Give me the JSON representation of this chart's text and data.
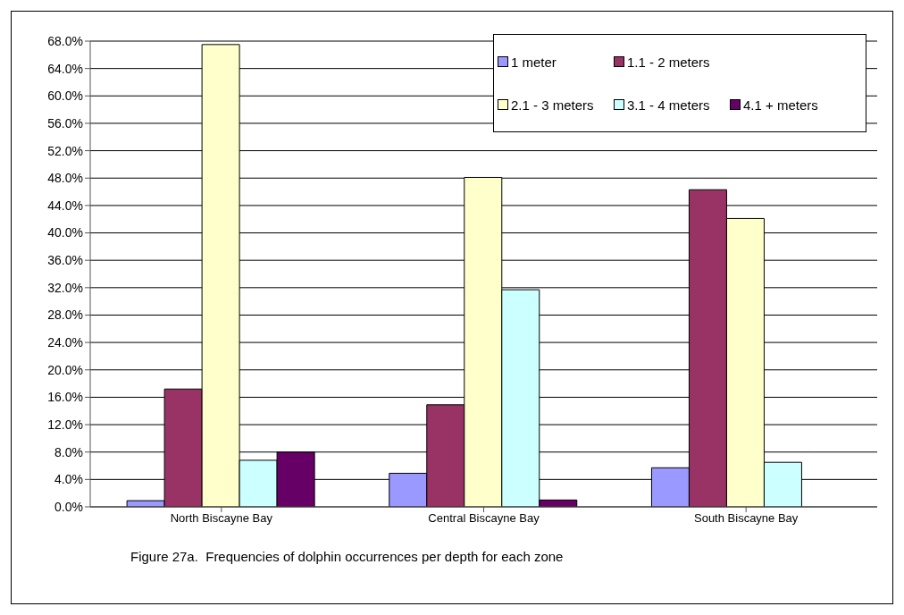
{
  "chart_data": {
    "type": "bar",
    "categories": [
      "North Biscayne Bay",
      "Central Biscayne Bay",
      "South Biscayne Bay"
    ],
    "series": [
      {
        "name": "1 meter",
        "color": "#9999ff",
        "values": [
          0.9,
          4.9,
          5.7
        ]
      },
      {
        "name": "1.1 - 2 meters",
        "color": "#993366",
        "values": [
          17.2,
          14.9,
          46.3
        ]
      },
      {
        "name": "2.1 - 3 meters",
        "color": "#ffffcc",
        "values": [
          67.5,
          48.1,
          42.1
        ]
      },
      {
        "name": "3.1 - 4 meters",
        "color": "#ccffff",
        "values": [
          6.8,
          31.7,
          6.5
        ]
      },
      {
        "name": "4.1 + meters",
        "color": "#660066",
        "values": [
          8.0,
          1.0,
          0
        ]
      }
    ],
    "ylim": [
      0,
      68
    ],
    "yticks": [
      {
        "value": 0,
        "label": "0.0%"
      },
      {
        "value": 4,
        "label": "4.0%"
      },
      {
        "value": 8,
        "label": "8.0%"
      },
      {
        "value": 12,
        "label": "12.0%"
      },
      {
        "value": 16,
        "label": "16.0%"
      },
      {
        "value": 20,
        "label": "20.0%"
      },
      {
        "value": 24,
        "label": "24.0%"
      },
      {
        "value": 28,
        "label": "28.0%"
      },
      {
        "value": 32,
        "label": "32.0%"
      },
      {
        "value": 36,
        "label": "36.0%"
      },
      {
        "value": 40,
        "label": "40.0%"
      },
      {
        "value": 44,
        "label": "44.0%"
      },
      {
        "value": 48,
        "label": "48.0%"
      },
      {
        "value": 52,
        "label": "52.0%"
      },
      {
        "value": 56,
        "label": "56.0%"
      },
      {
        "value": 60,
        "label": "60.0%"
      },
      {
        "value": 64,
        "label": "64.0%"
      },
      {
        "value": 68,
        "label": "68.0%"
      }
    ],
    "grid": "y",
    "legend": "top right",
    "annotations": [
      "Figure 27a.  Frequencies of dolphin occurrences per depth for each zone"
    ]
  }
}
